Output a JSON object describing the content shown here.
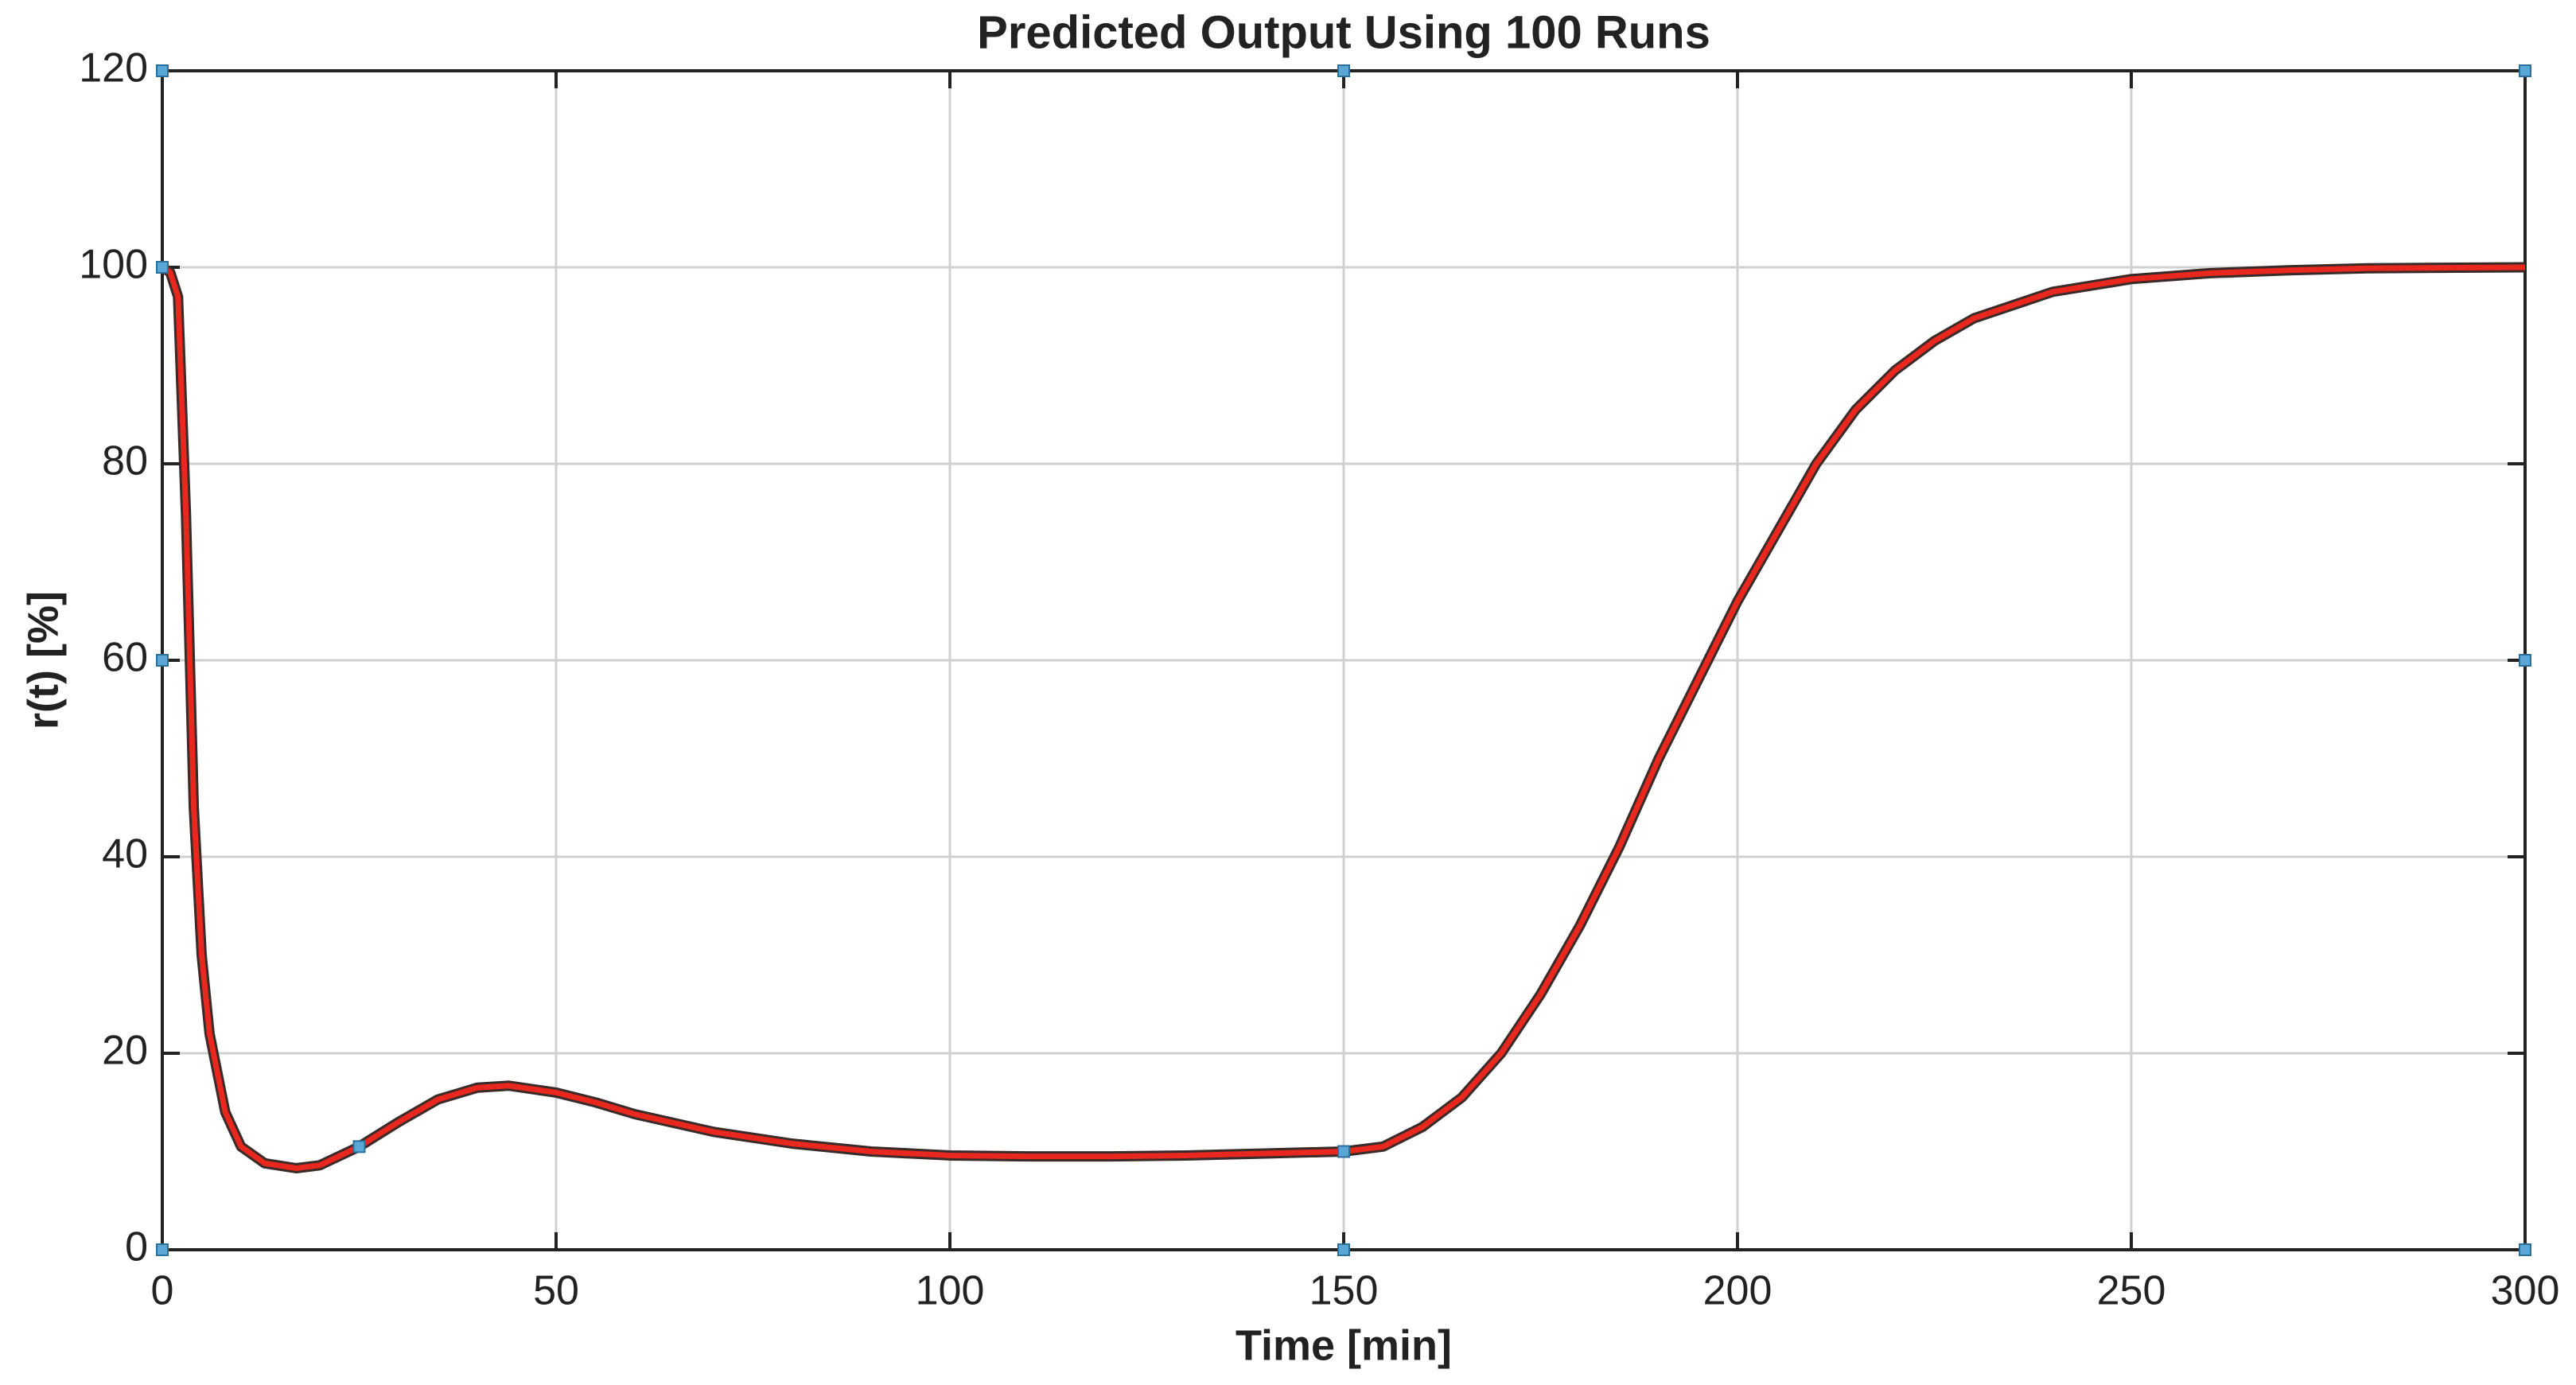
{
  "chart_data": {
    "type": "line",
    "title": "Predicted Output Using 100 Runs",
    "xlabel": "Time [min]",
    "ylabel": "r(t) [%]",
    "x": [
      0,
      1,
      2,
      3,
      4,
      5,
      6,
      8,
      10,
      13,
      17,
      20,
      25,
      30,
      35,
      40,
      44,
      50,
      55,
      60,
      70,
      80,
      90,
      100,
      110,
      120,
      130,
      140,
      150,
      155,
      160,
      165,
      170,
      175,
      180,
      185,
      190,
      195,
      200,
      205,
      210,
      215,
      220,
      225,
      230,
      240,
      250,
      260,
      270,
      280,
      300
    ],
    "series": [
      {
        "color": "#e8281e",
        "values": [
          100,
          99.5,
          97,
          75,
          45,
          30,
          22,
          14,
          10.5,
          8.8,
          8.3,
          8.6,
          10.5,
          13,
          15.3,
          16.5,
          16.7,
          16,
          15,
          13.8,
          12,
          10.8,
          10,
          9.6,
          9.5,
          9.5,
          9.6,
          9.8,
          10,
          10.5,
          12.5,
          15.5,
          20,
          26,
          33,
          41,
          50,
          58,
          66,
          73,
          80,
          85.5,
          89.5,
          92.5,
          94.8,
          97.5,
          98.8,
          99.4,
          99.7,
          99.9,
          100
        ]
      }
    ],
    "points": {
      "color": "#5aa7d6",
      "x": [
        0,
        0,
        0,
        0,
        25,
        150,
        150,
        150,
        300,
        300,
        300
      ],
      "y": [
        0,
        60,
        100,
        120,
        10.5,
        0,
        10,
        120,
        0,
        60,
        120
      ]
    },
    "xlim": [
      0,
      300
    ],
    "xticks": [
      0,
      50,
      100,
      150,
      200,
      250,
      300
    ],
    "ylim": [
      0,
      120
    ],
    "yticks": [
      0,
      20,
      40,
      60,
      80,
      100,
      120
    ],
    "grid": true
  }
}
